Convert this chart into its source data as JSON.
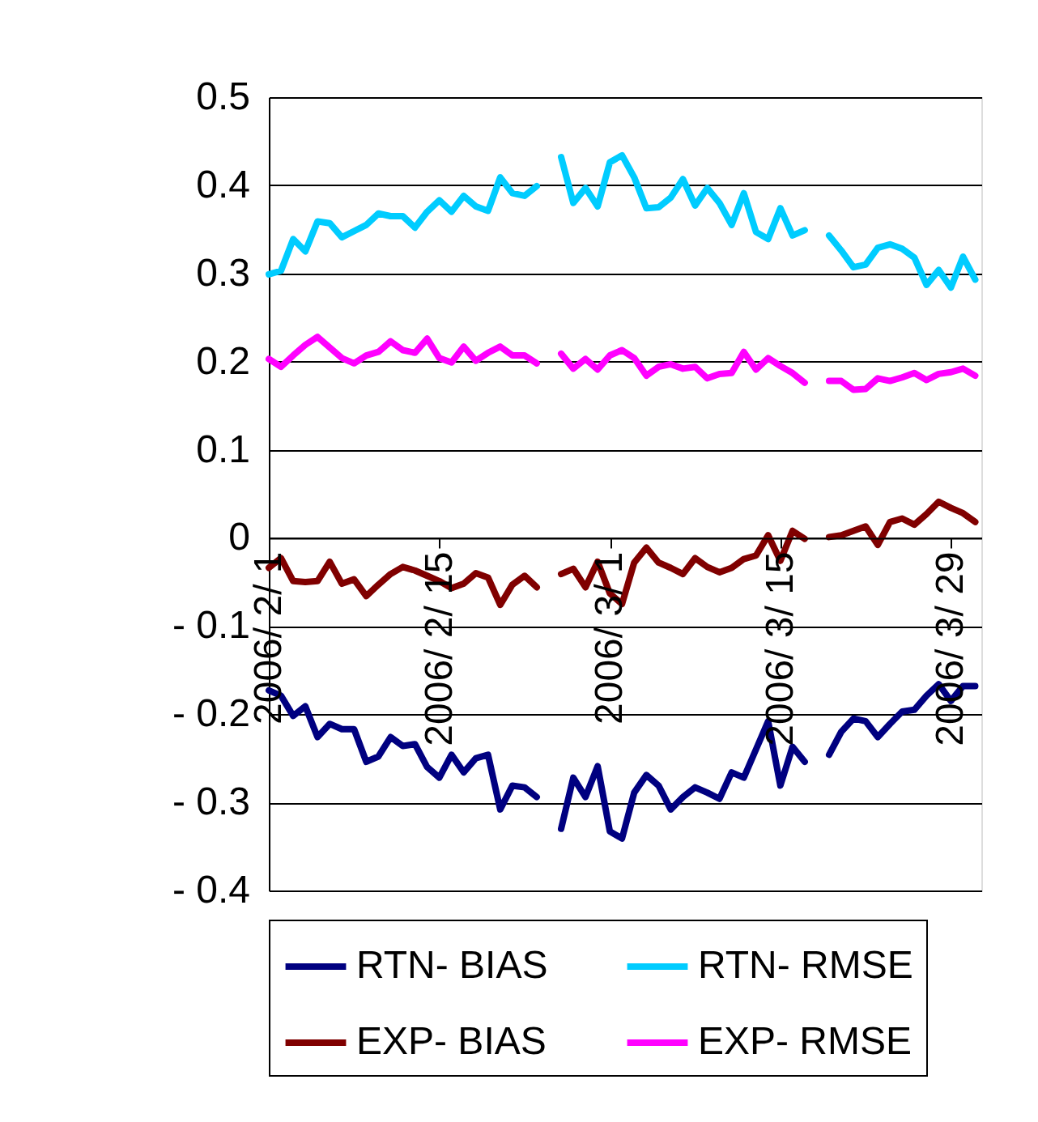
{
  "chart_data": {
    "type": "line",
    "x": [
      "2006-02-01",
      "2006-02-02",
      "2006-02-03",
      "2006-02-04",
      "2006-02-05",
      "2006-02-06",
      "2006-02-07",
      "2006-02-08",
      "2006-02-09",
      "2006-02-10",
      "2006-02-11",
      "2006-02-12",
      "2006-02-13",
      "2006-02-14",
      "2006-02-15",
      "2006-02-16",
      "2006-02-17",
      "2006-02-18",
      "2006-02-19",
      "2006-02-20",
      "2006-02-21",
      "2006-02-22",
      "2006-02-23",
      "2006-02-24",
      "2006-02-25",
      "2006-02-26",
      "2006-02-27",
      "2006-02-28",
      "2006-03-01",
      "2006-03-02",
      "2006-03-03",
      "2006-03-04",
      "2006-03-05",
      "2006-03-06",
      "2006-03-07",
      "2006-03-08",
      "2006-03-09",
      "2006-03-10",
      "2006-03-11",
      "2006-03-12",
      "2006-03-13",
      "2006-03-14",
      "2006-03-15",
      "2006-03-16",
      "2006-03-17",
      "2006-03-18",
      "2006-03-19",
      "2006-03-20",
      "2006-03-21",
      "2006-03-22",
      "2006-03-23",
      "2006-03-24",
      "2006-03-25",
      "2006-03-26",
      "2006-03-27",
      "2006-03-28",
      "2006-03-29",
      "2006-03-30",
      "2006-03-31"
    ],
    "series": [
      {
        "name": "RTN- BIAS",
        "color": "#000080",
        "values": [
          -0.173,
          -0.179,
          -0.202,
          -0.191,
          -0.226,
          -0.211,
          -0.217,
          -0.217,
          -0.254,
          -0.248,
          -0.226,
          -0.236,
          -0.234,
          -0.26,
          -0.272,
          -0.246,
          -0.266,
          -0.25,
          -0.246,
          -0.308,
          -0.281,
          -0.283,
          -0.294,
          null,
          -0.33,
          -0.272,
          -0.294,
          -0.259,
          -0.333,
          -0.341,
          -0.289,
          -0.269,
          -0.281,
          -0.308,
          -0.294,
          -0.283,
          -0.289,
          -0.296,
          -0.266,
          -0.272,
          -0.24,
          -0.208,
          -0.281,
          -0.237,
          -0.254,
          null,
          -0.246,
          -0.22,
          -0.205,
          -0.208,
          -0.226,
          -0.211,
          -0.197,
          -0.195,
          -0.179,
          -0.166,
          -0.185,
          -0.168,
          -0.168
        ]
      },
      {
        "name": "RTN- RMSE",
        "color": "#00ccff",
        "values": [
          0.299,
          0.303,
          0.339,
          0.325,
          0.359,
          0.357,
          0.341,
          0.348,
          0.355,
          0.368,
          0.365,
          0.365,
          0.352,
          0.37,
          0.383,
          0.37,
          0.388,
          0.376,
          0.371,
          0.409,
          0.391,
          0.388,
          0.399,
          null,
          0.432,
          0.38,
          0.397,
          0.376,
          0.426,
          0.434,
          0.409,
          0.374,
          0.375,
          0.386,
          0.407,
          0.377,
          0.397,
          0.38,
          0.355,
          0.391,
          0.347,
          0.339,
          0.374,
          0.343,
          0.349,
          null,
          0.343,
          0.326,
          0.307,
          0.31,
          0.329,
          0.333,
          0.328,
          0.318,
          0.287,
          0.304,
          0.284,
          0.319,
          0.293
        ]
      },
      {
        "name": "EXP- BIAS",
        "color": "#800000",
        "values": [
          -0.034,
          -0.023,
          -0.049,
          -0.05,
          -0.049,
          -0.027,
          -0.052,
          -0.047,
          -0.066,
          -0.053,
          -0.041,
          -0.033,
          -0.037,
          -0.043,
          -0.049,
          -0.057,
          -0.052,
          -0.04,
          -0.045,
          -0.076,
          -0.053,
          -0.043,
          -0.056,
          null,
          -0.041,
          -0.035,
          -0.056,
          -0.027,
          -0.063,
          -0.075,
          -0.028,
          -0.011,
          -0.028,
          -0.034,
          -0.041,
          -0.023,
          -0.033,
          -0.039,
          -0.034,
          -0.024,
          -0.02,
          0.003,
          -0.026,
          0.008,
          -0.001,
          null,
          0.001,
          0.003,
          0.008,
          0.013,
          -0.008,
          0.018,
          0.022,
          0.015,
          0.027,
          0.041,
          0.034,
          0.028,
          0.018
        ]
      },
      {
        "name": "EXP- RMSE",
        "color": "#ff00ff",
        "values": [
          0.203,
          0.194,
          0.207,
          0.219,
          0.228,
          0.216,
          0.204,
          0.198,
          0.207,
          0.211,
          0.223,
          0.213,
          0.21,
          0.226,
          0.204,
          0.199,
          0.217,
          0.201,
          0.21,
          0.217,
          0.207,
          0.207,
          0.198,
          null,
          0.209,
          0.192,
          0.203,
          0.191,
          0.207,
          0.213,
          0.204,
          0.184,
          0.194,
          0.197,
          0.192,
          0.194,
          0.181,
          0.186,
          0.187,
          0.211,
          0.191,
          0.204,
          0.195,
          0.187,
          0.176,
          null,
          0.178,
          0.178,
          0.168,
          0.169,
          0.181,
          0.178,
          0.182,
          0.187,
          0.179,
          0.186,
          0.188,
          0.192,
          0.184
        ]
      }
    ],
    "xlim": [
      "2006-02-01",
      "2006-03-31T12:00"
    ],
    "xticks": [
      {
        "value": "2006-02-01",
        "label": "2006/ 2/ 1"
      },
      {
        "value": "2006-02-15",
        "label": "2006/ 2/ 15"
      },
      {
        "value": "2006-03-01",
        "label": "2006/ 3/ 1"
      },
      {
        "value": "2006-03-15",
        "label": "2006/ 3/ 15"
      },
      {
        "value": "2006-03-29",
        "label": "2006/ 3/ 29"
      }
    ],
    "ylim": [
      -0.4,
      0.5
    ],
    "yticks": [
      {
        "value": -0.4,
        "label": "- 0.4"
      },
      {
        "value": -0.3,
        "label": "- 0.3"
      },
      {
        "value": -0.2,
        "label": "- 0.2"
      },
      {
        "value": -0.1,
        "label": "- 0.1"
      },
      0,
      0.1,
      0.2,
      0.3,
      0.4,
      0.5
    ],
    "grid": "y",
    "legend": "bottom",
    "marker": "none",
    "line_style": "solid"
  }
}
